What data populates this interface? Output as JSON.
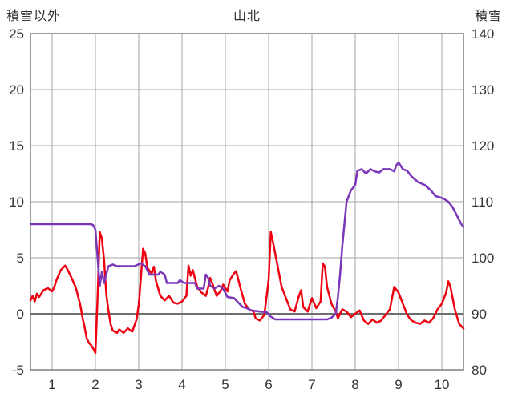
{
  "header": {
    "left_axis_title": "積雪以外",
    "title": "山北",
    "right_axis_title": "積雪"
  },
  "chart_data": {
    "type": "line",
    "title": "山北",
    "x_range": [
      0.5,
      10.5
    ],
    "x_ticks": [
      1,
      2,
      3,
      4,
      5,
      6,
      7,
      8,
      9,
      10
    ],
    "left_axis": {
      "label": "積雪以外",
      "range": [
        -5,
        25
      ],
      "ticks": [
        -5,
        0,
        5,
        10,
        15,
        20,
        25
      ]
    },
    "right_axis": {
      "label": "積雪",
      "range": [
        80,
        140
      ],
      "ticks": [
        80,
        90,
        100,
        110,
        120,
        130,
        140
      ]
    },
    "grid": true,
    "zero_line": 0,
    "colors": {
      "grid": "#a6a6a6",
      "frame": "#7f7f7f",
      "zero": "#6e6e6e",
      "text": "#333333",
      "red": "#ee0011",
      "purple": "#7a35b8"
    },
    "series": [
      {
        "name": "積雪以外",
        "axis": "left",
        "color_key": "red",
        "points": [
          [
            0.5,
            1.2
          ],
          [
            0.55,
            1.6
          ],
          [
            0.6,
            1.1
          ],
          [
            0.65,
            1.8
          ],
          [
            0.7,
            1.5
          ],
          [
            0.8,
            2.1
          ],
          [
            0.9,
            2.3
          ],
          [
            1.0,
            2.0
          ],
          [
            1.05,
            2.4
          ],
          [
            1.1,
            3.0
          ],
          [
            1.2,
            3.9
          ],
          [
            1.3,
            4.3
          ],
          [
            1.35,
            4.0
          ],
          [
            1.45,
            3.2
          ],
          [
            1.55,
            2.3
          ],
          [
            1.65,
            0.8
          ],
          [
            1.7,
            -0.3
          ],
          [
            1.75,
            -1.2
          ],
          [
            1.8,
            -2.2
          ],
          [
            1.85,
            -2.6
          ],
          [
            1.9,
            -2.8
          ],
          [
            1.95,
            -3.1
          ],
          [
            2.0,
            -3.5
          ],
          [
            2.05,
            1.5
          ],
          [
            2.1,
            7.3
          ],
          [
            2.15,
            6.7
          ],
          [
            2.2,
            4.8
          ],
          [
            2.25,
            1.8
          ],
          [
            2.3,
            0.3
          ],
          [
            2.35,
            -0.9
          ],
          [
            2.4,
            -1.5
          ],
          [
            2.5,
            -1.7
          ],
          [
            2.55,
            -1.4
          ],
          [
            2.65,
            -1.7
          ],
          [
            2.75,
            -1.3
          ],
          [
            2.85,
            -1.6
          ],
          [
            2.95,
            -0.5
          ],
          [
            3.0,
            0.8
          ],
          [
            3.05,
            3.2
          ],
          [
            3.1,
            5.8
          ],
          [
            3.15,
            5.4
          ],
          [
            3.2,
            4.1
          ],
          [
            3.3,
            3.6
          ],
          [
            3.35,
            4.2
          ],
          [
            3.4,
            2.9
          ],
          [
            3.5,
            1.6
          ],
          [
            3.6,
            1.2
          ],
          [
            3.7,
            1.6
          ],
          [
            3.8,
            1.0
          ],
          [
            3.9,
            0.9
          ],
          [
            4.0,
            1.1
          ],
          [
            4.1,
            1.6
          ],
          [
            4.15,
            4.3
          ],
          [
            4.2,
            3.4
          ],
          [
            4.25,
            3.9
          ],
          [
            4.35,
            2.4
          ],
          [
            4.45,
            1.9
          ],
          [
            4.55,
            1.6
          ],
          [
            4.6,
            2.3
          ],
          [
            4.65,
            3.2
          ],
          [
            4.7,
            2.7
          ],
          [
            4.8,
            1.6
          ],
          [
            4.9,
            2.1
          ],
          [
            4.95,
            2.6
          ],
          [
            5.05,
            2.0
          ],
          [
            5.1,
            3.0
          ],
          [
            5.2,
            3.6
          ],
          [
            5.25,
            3.8
          ],
          [
            5.35,
            2.3
          ],
          [
            5.45,
            0.9
          ],
          [
            5.55,
            0.4
          ],
          [
            5.65,
            0.2
          ],
          [
            5.7,
            -0.4
          ],
          [
            5.8,
            -0.6
          ],
          [
            5.9,
            -0.1
          ],
          [
            6.0,
            3.0
          ],
          [
            6.05,
            7.3
          ],
          [
            6.1,
            6.4
          ],
          [
            6.2,
            4.4
          ],
          [
            6.3,
            2.4
          ],
          [
            6.4,
            1.4
          ],
          [
            6.5,
            0.4
          ],
          [
            6.6,
            0.2
          ],
          [
            6.7,
            1.6
          ],
          [
            6.75,
            2.1
          ],
          [
            6.8,
            0.6
          ],
          [
            6.9,
            0.2
          ],
          [
            7.0,
            1.4
          ],
          [
            7.1,
            0.5
          ],
          [
            7.2,
            1.1
          ],
          [
            7.25,
            4.5
          ],
          [
            7.3,
            4.2
          ],
          [
            7.35,
            2.4
          ],
          [
            7.45,
            0.9
          ],
          [
            7.55,
            0.2
          ],
          [
            7.6,
            -0.4
          ],
          [
            7.7,
            0.4
          ],
          [
            7.8,
            0.2
          ],
          [
            7.9,
            -0.3
          ],
          [
            8.0,
            0.0
          ],
          [
            8.1,
            0.3
          ],
          [
            8.2,
            -0.6
          ],
          [
            8.3,
            -0.9
          ],
          [
            8.4,
            -0.5
          ],
          [
            8.5,
            -0.8
          ],
          [
            8.6,
            -0.6
          ],
          [
            8.7,
            -0.1
          ],
          [
            8.8,
            0.4
          ],
          [
            8.9,
            2.4
          ],
          [
            9.0,
            1.9
          ],
          [
            9.1,
            0.9
          ],
          [
            9.2,
            -0.1
          ],
          [
            9.3,
            -0.6
          ],
          [
            9.4,
            -0.8
          ],
          [
            9.5,
            -0.9
          ],
          [
            9.6,
            -0.6
          ],
          [
            9.7,
            -0.8
          ],
          [
            9.8,
            -0.4
          ],
          [
            9.9,
            0.4
          ],
          [
            10.0,
            0.9
          ],
          [
            10.1,
            1.9
          ],
          [
            10.15,
            2.9
          ],
          [
            10.2,
            2.4
          ],
          [
            10.3,
            0.4
          ],
          [
            10.4,
            -0.9
          ],
          [
            10.5,
            -1.3
          ]
        ]
      },
      {
        "name": "積雪",
        "axis": "right",
        "color_key": "purple",
        "points": [
          [
            0.5,
            106
          ],
          [
            1.0,
            106
          ],
          [
            1.5,
            106
          ],
          [
            1.9,
            106
          ],
          [
            1.95,
            105.8
          ],
          [
            2.0,
            105
          ],
          [
            2.05,
            100
          ],
          [
            2.1,
            95
          ],
          [
            2.15,
            97.5
          ],
          [
            2.2,
            95.5
          ],
          [
            2.3,
            98.5
          ],
          [
            2.4,
            98.8
          ],
          [
            2.5,
            98.5
          ],
          [
            2.7,
            98.5
          ],
          [
            2.9,
            98.5
          ],
          [
            3.05,
            99
          ],
          [
            3.15,
            98.5
          ],
          [
            3.25,
            97
          ],
          [
            3.45,
            97
          ],
          [
            3.5,
            97.5
          ],
          [
            3.6,
            97
          ],
          [
            3.65,
            95.5
          ],
          [
            3.9,
            95.5
          ],
          [
            3.95,
            96
          ],
          [
            4.05,
            95.5
          ],
          [
            4.3,
            95.5
          ],
          [
            4.35,
            94.5
          ],
          [
            4.5,
            94.5
          ],
          [
            4.55,
            97
          ],
          [
            4.6,
            96.5
          ],
          [
            4.65,
            95
          ],
          [
            4.75,
            94.5
          ],
          [
            4.85,
            95
          ],
          [
            4.95,
            94.5
          ],
          [
            5.05,
            93
          ],
          [
            5.2,
            92.8
          ],
          [
            5.3,
            92
          ],
          [
            5.4,
            91.2
          ],
          [
            5.5,
            91
          ],
          [
            5.6,
            90.6
          ],
          [
            5.8,
            90.4
          ],
          [
            5.95,
            90.3
          ],
          [
            6.05,
            89.5
          ],
          [
            6.15,
            89
          ],
          [
            6.5,
            89
          ],
          [
            7.0,
            89
          ],
          [
            7.35,
            89
          ],
          [
            7.45,
            89.3
          ],
          [
            7.55,
            90
          ],
          [
            7.6,
            93
          ],
          [
            7.65,
            97
          ],
          [
            7.7,
            102
          ],
          [
            7.75,
            106
          ],
          [
            7.8,
            110
          ],
          [
            7.9,
            112
          ],
          [
            7.95,
            112.5
          ],
          [
            8.0,
            113
          ],
          [
            8.05,
            115.5
          ],
          [
            8.15,
            115.8
          ],
          [
            8.25,
            115
          ],
          [
            8.35,
            115.8
          ],
          [
            8.45,
            115.4
          ],
          [
            8.55,
            115.2
          ],
          [
            8.65,
            115.8
          ],
          [
            8.8,
            115.8
          ],
          [
            8.9,
            115.4
          ],
          [
            8.95,
            116.5
          ],
          [
            9.0,
            117
          ],
          [
            9.05,
            116.4
          ],
          [
            9.1,
            115.8
          ],
          [
            9.2,
            115.5
          ],
          [
            9.3,
            114.5
          ],
          [
            9.45,
            113.5
          ],
          [
            9.6,
            113
          ],
          [
            9.75,
            112
          ],
          [
            9.85,
            111
          ],
          [
            9.95,
            110.8
          ],
          [
            10.05,
            110.5
          ],
          [
            10.15,
            110
          ],
          [
            10.25,
            109
          ],
          [
            10.35,
            107.5
          ],
          [
            10.45,
            106
          ],
          [
            10.5,
            105.5
          ]
        ]
      }
    ]
  }
}
